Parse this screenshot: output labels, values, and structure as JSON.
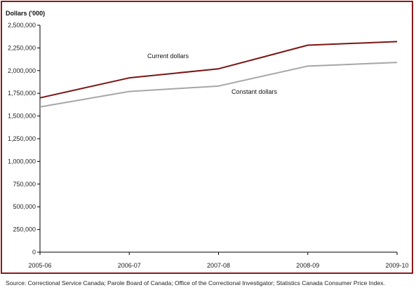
{
  "chart_data": {
    "type": "line",
    "ylabel": "Dollars ('000)",
    "categories": [
      "2005-06",
      "2006-07",
      "2007-08",
      "2008-09",
      "2009-10"
    ],
    "ylim": [
      0,
      2500000
    ],
    "yticks": [
      0,
      250000,
      500000,
      750000,
      1000000,
      1250000,
      1500000,
      1750000,
      2000000,
      2250000,
      2500000
    ],
    "ytick_labels": [
      "0",
      "250,000",
      "500,000",
      "750,000",
      "1,000,000",
      "1,250,000",
      "1,500,000",
      "1,750,000",
      "2,000,000",
      "2,250,000",
      "2,500,000"
    ],
    "grid": false,
    "series": [
      {
        "name": "Current dollars",
        "color": "#7b1414",
        "values": [
          1700000,
          1920000,
          2020000,
          2280000,
          2320000
        ]
      },
      {
        "name": "Constant dollars",
        "color": "#a6a6a6",
        "values": [
          1600000,
          1770000,
          1830000,
          2050000,
          2090000
        ]
      }
    ]
  },
  "source": "Source: Correctional Service Canada; Parole Board of Canada; Office of the Correctional Investigator; Statistics Canada Consumer Price Index."
}
